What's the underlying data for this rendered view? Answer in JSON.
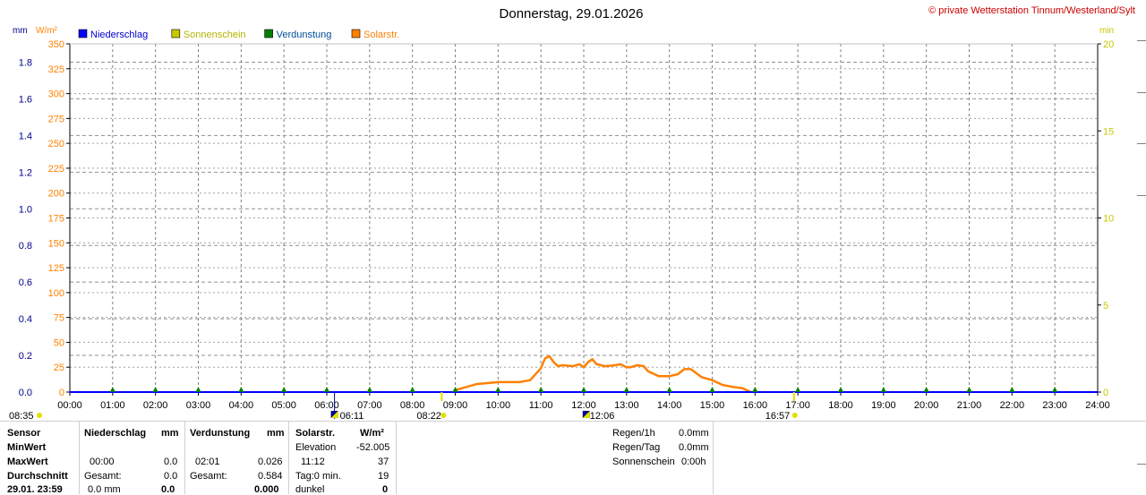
{
  "title": "Donnerstag, 29.01.2026",
  "copyright": "© private Wetterstation Tinnum/Westerland/Sylt",
  "units": {
    "left1": "mm",
    "left2": "W/m²",
    "right": "min"
  },
  "legend": [
    {
      "label": "Niederschlag",
      "color": "#0000ff"
    },
    {
      "label": "Sonnenschein",
      "color": "#c8c800"
    },
    {
      "label": "Verdunstung",
      "color": "#008000"
    },
    {
      "label": "Solarstr.",
      "color": "#ff8000"
    }
  ],
  "chart_data": {
    "type": "line",
    "x_range": [
      "00:00",
      "24:00"
    ],
    "x_ticks": [
      "00:00",
      "01:00",
      "02:00",
      "03:00",
      "04:00",
      "05:00",
      "06:00",
      "07:00",
      "08:00",
      "09:00",
      "10:00",
      "11:00",
      "12:00",
      "13:00",
      "14:00",
      "15:00",
      "16:00",
      "17:00",
      "18:00",
      "19:00",
      "20:00",
      "21:00",
      "22:00",
      "23:00",
      "24:00"
    ],
    "y_mm": {
      "range": [
        0,
        1.9
      ],
      "ticks": [
        "0.0",
        "0.2",
        "0.4",
        "0.6",
        "0.8",
        "1.0",
        "1.2",
        "1.4",
        "1.6",
        "1.8"
      ]
    },
    "y_wm2": {
      "range": [
        0,
        350
      ],
      "ticks": [
        "0",
        "25",
        "50",
        "75",
        "100",
        "125",
        "150",
        "175",
        "200",
        "225",
        "250",
        "275",
        "300",
        "325",
        "350"
      ]
    },
    "y_min": {
      "range": [
        0,
        20
      ],
      "ticks": [
        "0",
        "5",
        "10",
        "15",
        "20"
      ]
    },
    "series": [
      {
        "name": "Solarstr.",
        "color": "#ff8000",
        "unit": "W/m²",
        "x": [
          9.0,
          9.25,
          9.5,
          9.75,
          10.0,
          10.25,
          10.5,
          10.75,
          11.0,
          11.1,
          11.2,
          11.3,
          11.4,
          11.5,
          11.75,
          11.9,
          12.0,
          12.1,
          12.2,
          12.3,
          12.5,
          12.75,
          12.85,
          13.0,
          13.1,
          13.25,
          13.4,
          13.5,
          13.75,
          14.0,
          14.2,
          14.35,
          14.5,
          14.75,
          15.0,
          15.25,
          15.5,
          15.7,
          15.8,
          15.9
        ],
        "y": [
          2,
          5,
          8,
          9,
          10,
          10,
          10,
          12,
          24,
          34,
          36,
          30,
          26,
          27,
          26,
          28,
          25,
          30,
          33,
          28,
          26,
          27,
          28,
          25,
          25,
          27,
          26,
          21,
          16,
          16,
          18,
          23,
          23,
          15,
          12,
          7,
          5,
          4,
          2,
          0
        ]
      },
      {
        "name": "Niederschlag",
        "color": "#0000ff",
        "unit": "mm",
        "x": [
          0,
          24
        ],
        "y": [
          0,
          0
        ]
      },
      {
        "name": "Verdunstung",
        "color": "#008000",
        "unit": "mm",
        "markers_x": [
          1,
          2,
          3,
          4,
          5,
          6,
          7,
          8,
          9,
          10,
          11,
          12,
          13,
          14,
          15,
          16,
          17,
          18,
          19,
          20,
          21,
          22,
          23
        ]
      }
    ],
    "markers": {
      "sun_up": {
        "label": "08:35",
        "x": 8.58
      },
      "moon_rise": {
        "label": "06:11",
        "x": 6.18
      },
      "sunrise": {
        "label": "08:22",
        "x": 8.37
      },
      "moon_transit": {
        "label": "12:06",
        "x": 12.1
      },
      "sunset": {
        "label": "16:57",
        "x": 16.95
      }
    },
    "grid": true
  },
  "stats": {
    "sensor_header": "Sensor",
    "min_label": "MinWert",
    "max_label": "MaxWert",
    "avg_label": "Durchschnitt",
    "last_label": "29.01. 23:59",
    "niederschlag": {
      "title": "Niederschlag",
      "unit": "mm",
      "max_time": "00:00",
      "max_val": "0.0",
      "sum_label": "Gesamt:",
      "sum_val": "0.0",
      "last_val": "0.0 mm",
      "last_val2": "0.0"
    },
    "verdunstung": {
      "title": "Verdunstung",
      "unit": "mm",
      "max_time": "02:01",
      "max_val": "0.026",
      "sum_label": "Gesamt:",
      "sum_val": "0.584",
      "last_val": "0.000"
    },
    "solar": {
      "title": "Solarstr.",
      "unit": "W/m²",
      "elev_label": "Elevation",
      "elev_val": "-52.005",
      "max_time": "11:12",
      "max_val": "37",
      "tag_label": "Tag:0 min.",
      "tag_val": "19",
      "dunkel_label": "dunkel",
      "dunkel_val": "0"
    },
    "regen1h_label": "Regen/1h",
    "regen1h_val": "0.0mm",
    "regentag_label": "Regen/Tag",
    "regentag_val": "0.0mm",
    "sonne_label": "Sonnenschein",
    "sonne_val": "0:00h"
  }
}
